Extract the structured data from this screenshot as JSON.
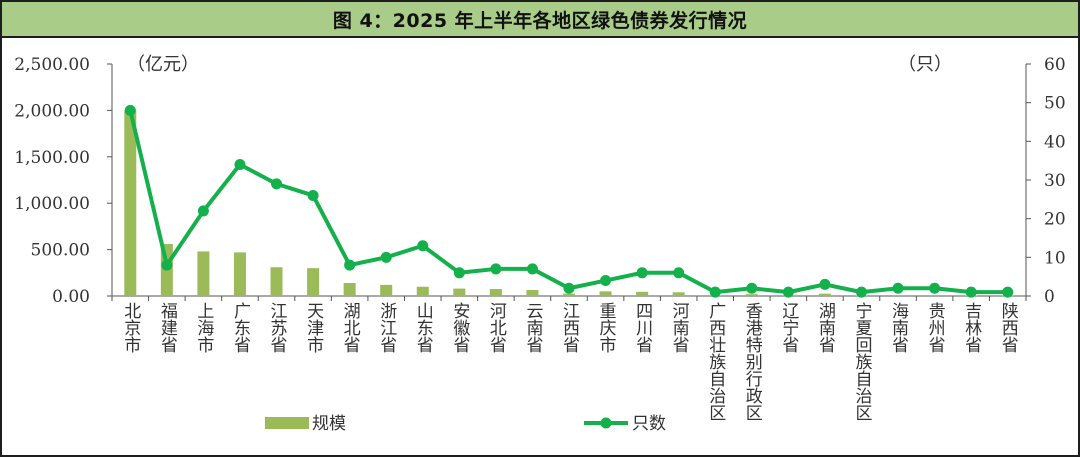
{
  "title": "图 4：2025 年上半年各地区绿色债券发行情况",
  "chart_data": {
    "type": "bar+line",
    "left_axis": {
      "unit_label": "（亿元）",
      "ylim": [
        0,
        2500
      ],
      "ticks": [
        "0.00",
        "500.00",
        "1,000.00",
        "1,500.00",
        "2,000.00",
        "2,500.00"
      ]
    },
    "right_axis": {
      "unit_label": "（只）",
      "ylim": [
        0,
        60
      ],
      "ticks": [
        "0",
        "10",
        "20",
        "30",
        "40",
        "50",
        "60"
      ]
    },
    "categories": [
      "北京市",
      "福建省",
      "上海市",
      "广东省",
      "江苏省",
      "天津市",
      "湖北省",
      "浙江省",
      "山东省",
      "安徽省",
      "河北省",
      "云南省",
      "江西省",
      "重庆市",
      "四川省",
      "河南省",
      "广西壮族自治区",
      "香港特别行政区",
      "辽宁省",
      "湖南省",
      "宁夏回族自治区",
      "海南省",
      "贵州省",
      "吉林省",
      "陕西省"
    ],
    "series": [
      {
        "name": "规模",
        "type": "bar",
        "axis": "left",
        "color": "#9bbb59",
        "values": [
          2000,
          560,
          480,
          470,
          310,
          300,
          140,
          120,
          100,
          80,
          75,
          65,
          25,
          50,
          45,
          40,
          8,
          20,
          8,
          25,
          6,
          10,
          10,
          5,
          4
        ]
      },
      {
        "name": "只数",
        "type": "line",
        "axis": "right",
        "color": "#14b04b",
        "values": [
          48,
          8,
          22,
          34,
          29,
          26,
          8,
          10,
          13,
          6,
          7,
          7,
          2,
          4,
          6,
          6,
          1,
          2,
          1,
          3,
          1,
          2,
          2,
          1,
          1
        ]
      }
    ],
    "legend": {
      "placement": "bottom",
      "items": [
        "规模",
        "只数"
      ]
    },
    "grid": false
  }
}
